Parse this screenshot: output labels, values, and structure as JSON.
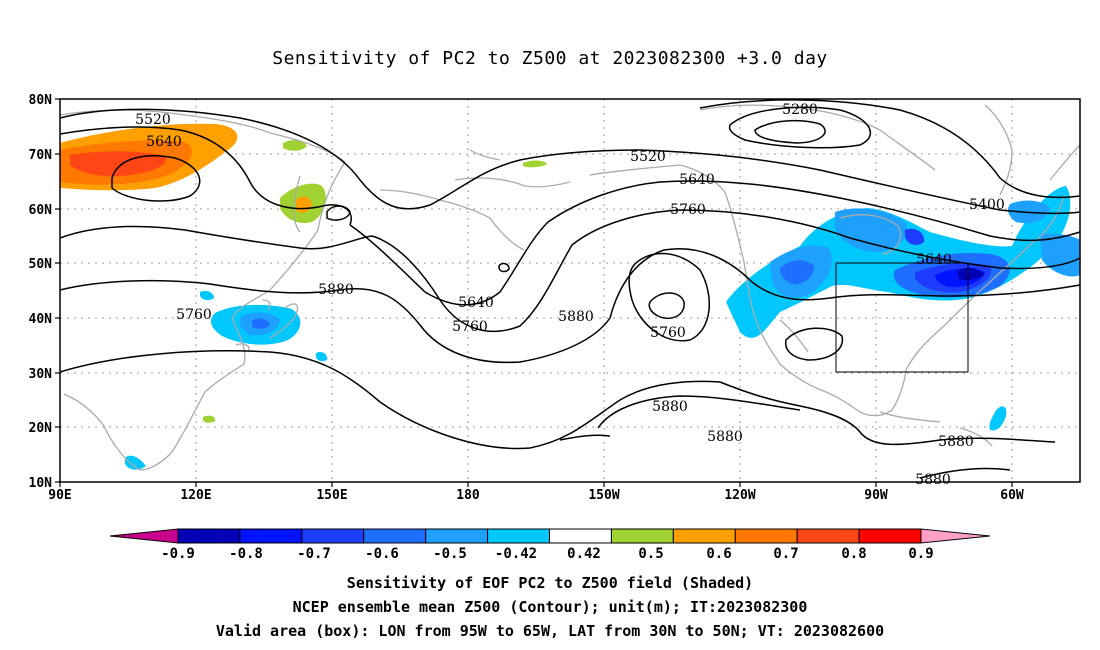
{
  "title": "Sensitivity of PC2 to Z500 at 2023082300 +3.0 day",
  "lat_ticks": [
    "80N",
    "70N",
    "60N",
    "50N",
    "40N",
    "30N",
    "20N",
    "10N"
  ],
  "lon_ticks": [
    "90E",
    "120E",
    "150E",
    "180",
    "150W",
    "120W",
    "90W",
    "60W"
  ],
  "contour_labels": [
    "5520",
    "5640",
    "5280",
    "5520",
    "5640",
    "5760",
    "5400",
    "5640",
    "5880",
    "5760",
    "5640",
    "5760",
    "5880",
    "5760",
    "5880",
    "5880",
    "5880",
    "5880"
  ],
  "colorbar": {
    "labels": [
      "-0.9",
      "-0.8",
      "-0.7",
      "-0.6",
      "-0.5",
      "-0.42",
      "0.42",
      "0.5",
      "0.6",
      "0.7",
      "0.8",
      "0.9"
    ],
    "colors": [
      "#c8008c",
      "#0000b4",
      "#0014ff",
      "#1e3cff",
      "#1e6eff",
      "#1ea0ff",
      "#00c8ff",
      "#ffffff",
      "#a0d232",
      "#ffa000",
      "#ff7800",
      "#ff4614",
      "#ff0000",
      "#ffa0c8"
    ]
  },
  "footer": {
    "line1": "Sensitivity of EOF PC2 to Z500 field (Shaded)",
    "line2": "NCEP ensemble mean Z500 (Contour); unit(m); IT:2023082300",
    "line3": "Valid area (box): LON from 95W to 65W, LAT from 30N to 50N; VT: 2023082600"
  }
}
